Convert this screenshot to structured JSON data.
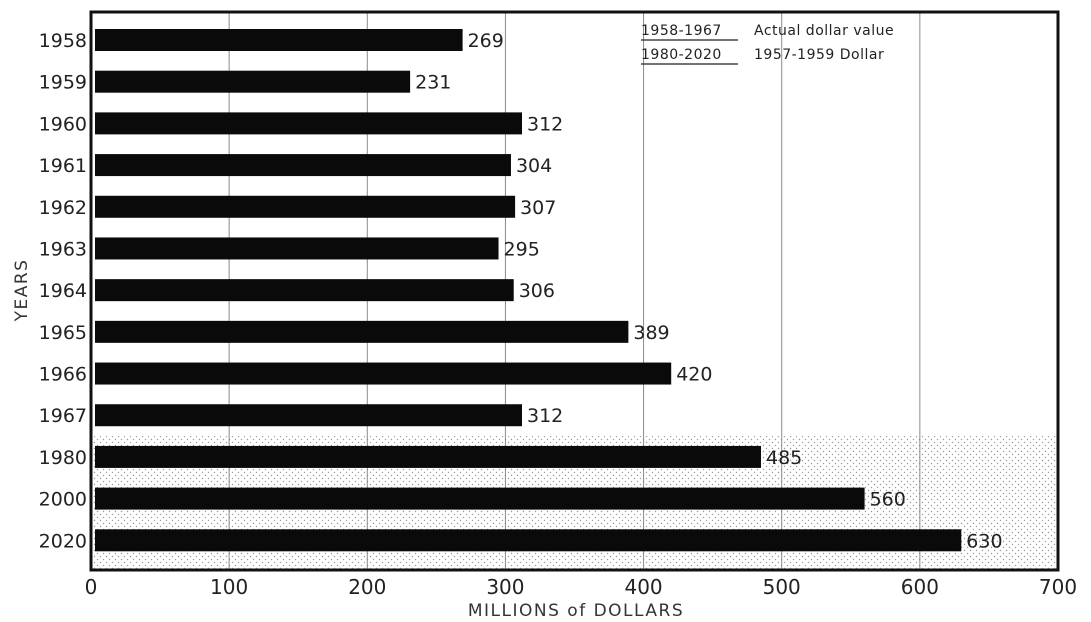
{
  "chart_data": {
    "type": "bar",
    "orientation": "horizontal",
    "title": "",
    "xlabel": "MILLIONS of DOLLARS",
    "ylabel": "YEARS",
    "xlim": [
      0,
      700
    ],
    "xticks": [
      "0",
      "100",
      "200",
      "300",
      "400",
      "500",
      "600",
      "700"
    ],
    "grid": true,
    "categories": [
      "1958",
      "1959",
      "1960",
      "1961",
      "1962",
      "1963",
      "1964",
      "1965",
      "1966",
      "1967",
      "1980",
      "2000",
      "2020"
    ],
    "values": [
      269,
      231,
      312,
      304,
      307,
      295,
      306,
      389,
      420,
      312,
      485,
      560,
      630
    ],
    "value_labels": [
      "269",
      "231",
      "312",
      "304",
      "307",
      "295",
      "306",
      "389",
      "420",
      "312",
      "485",
      "560",
      "630"
    ],
    "shaded_categories": [
      "1980",
      "2000",
      "2020"
    ],
    "legend": {
      "placement": "top-right",
      "entries": [
        {
          "range": "1958-1967",
          "text": "Actual dollar value"
        },
        {
          "range": "1980-2020",
          "text": "1957-1959 Dollar"
        }
      ]
    },
    "colors": {
      "bar": "#0a0a0a",
      "axis": "#111111",
      "grid": "#8a8a8a",
      "stipple": "#9a9a9a"
    }
  }
}
